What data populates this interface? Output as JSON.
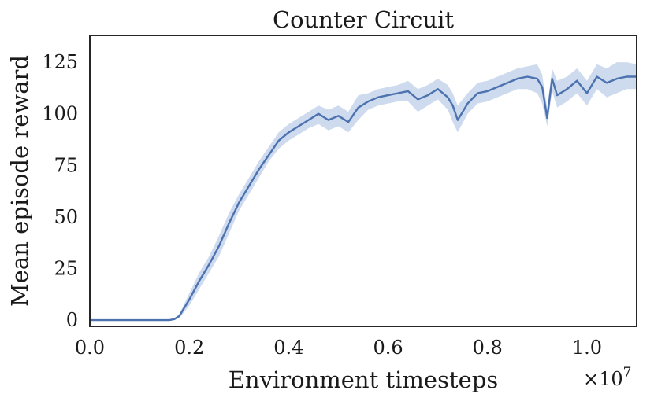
{
  "chart_data": {
    "type": "line",
    "title": "Counter Circuit",
    "xlabel": "Environment timesteps",
    "ylabel": "Mean episode reward",
    "x_multiplier_label": "×10",
    "x_multiplier_exponent": "7",
    "xlim": [
      0,
      1.1
    ],
    "ylim": [
      -3,
      138
    ],
    "xticks": [
      {
        "value": 0.0,
        "label": "0.0"
      },
      {
        "value": 0.2,
        "label": "0.2"
      },
      {
        "value": 0.4,
        "label": "0.4"
      },
      {
        "value": 0.6,
        "label": "0.6"
      },
      {
        "value": 0.8,
        "label": "0.8"
      },
      {
        "value": 1.0,
        "label": "1.0"
      }
    ],
    "yticks": [
      {
        "value": 0,
        "label": "0"
      },
      {
        "value": 25,
        "label": "25"
      },
      {
        "value": 50,
        "label": "50"
      },
      {
        "value": 75,
        "label": "75"
      },
      {
        "value": 100,
        "label": "100"
      },
      {
        "value": 125,
        "label": "125"
      }
    ],
    "grid": false,
    "line_color": "#4c72b0",
    "band_color": "#c9d7ec",
    "series": [
      {
        "x": [
          0.0,
          0.16,
          0.17,
          0.18,
          0.19,
          0.2,
          0.22,
          0.24,
          0.26,
          0.28,
          0.3,
          0.32,
          0.34,
          0.36,
          0.38,
          0.4,
          0.42,
          0.44,
          0.46,
          0.48,
          0.5,
          0.52,
          0.54,
          0.56,
          0.58,
          0.6,
          0.62,
          0.64,
          0.66,
          0.68,
          0.7,
          0.72,
          0.73,
          0.74,
          0.76,
          0.78,
          0.8,
          0.82,
          0.84,
          0.86,
          0.88,
          0.9,
          0.91,
          0.92,
          0.93,
          0.94,
          0.96,
          0.98,
          1.0,
          1.02,
          1.04,
          1.06,
          1.08,
          1.1
        ],
        "y": [
          0,
          0,
          0.5,
          2,
          6,
          10,
          19,
          27,
          36,
          47,
          57,
          65,
          73,
          80,
          87,
          91,
          94,
          97,
          100,
          97,
          99,
          96,
          103,
          106,
          108,
          109,
          110,
          111,
          107,
          109,
          112,
          108,
          104,
          97,
          105,
          110,
          111,
          113,
          115,
          117,
          118,
          117,
          113,
          98,
          117,
          109,
          112,
          116,
          110,
          118,
          115,
          117,
          118,
          118
        ],
        "lower": [
          0,
          0,
          0.2,
          1,
          4,
          7,
          15,
          23,
          31,
          42,
          53,
          61,
          69,
          77,
          83,
          87,
          90,
          93,
          95,
          92,
          94,
          91,
          97,
          102,
          104,
          105,
          106,
          106,
          101,
          104,
          107,
          102,
          96,
          91,
          100,
          105,
          106,
          108,
          110,
          112,
          112,
          110,
          105,
          94,
          111,
          103,
          106,
          110,
          104,
          112,
          108,
          110,
          112,
          112
        ],
        "upper": [
          0,
          0,
          0.8,
          3,
          8,
          13,
          23,
          31,
          41,
          52,
          61,
          69,
          77,
          84,
          91,
          95,
          98,
          101,
          104,
          102,
          104,
          101,
          109,
          110,
          112,
          113,
          114,
          116,
          112,
          114,
          117,
          114,
          110,
          104,
          110,
          115,
          116,
          118,
          120,
          122,
          123,
          124,
          119,
          103,
          122,
          116,
          118,
          122,
          116,
          124,
          122,
          125,
          125,
          124
        ]
      }
    ]
  }
}
